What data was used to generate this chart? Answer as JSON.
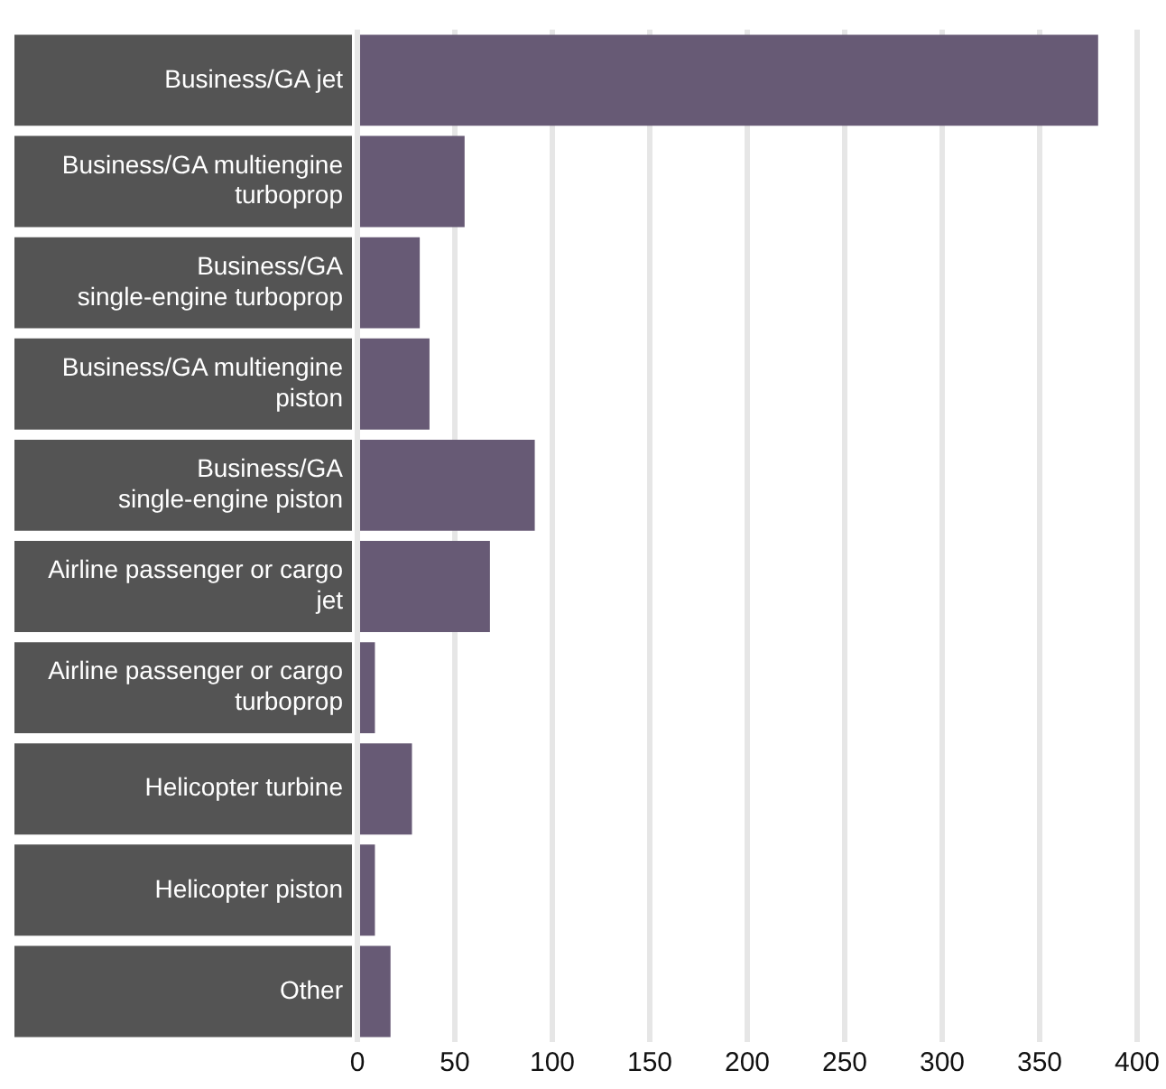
{
  "chart_data": {
    "type": "bar",
    "orientation": "horizontal",
    "categories": [
      "Business/GA jet",
      "Business/GA multiengine turboprop",
      "Business/GA single-engine turboprop",
      "Business/GA multiengine piston",
      "Business/GA single-engine piston",
      "Airline passenger or cargo jet",
      "Airline passenger or cargo turboprop",
      "Helicopter turbine",
      "Helicopter piston",
      "Other"
    ],
    "values": [
      380,
      55,
      32,
      37,
      91,
      68,
      9,
      28,
      9,
      17
    ],
    "color": "#675a75",
    "xlim": [
      0,
      400
    ],
    "xticks": [
      0,
      50,
      100,
      150,
      200,
      250,
      300,
      350,
      400
    ],
    "grid": "x",
    "legend": false
  }
}
